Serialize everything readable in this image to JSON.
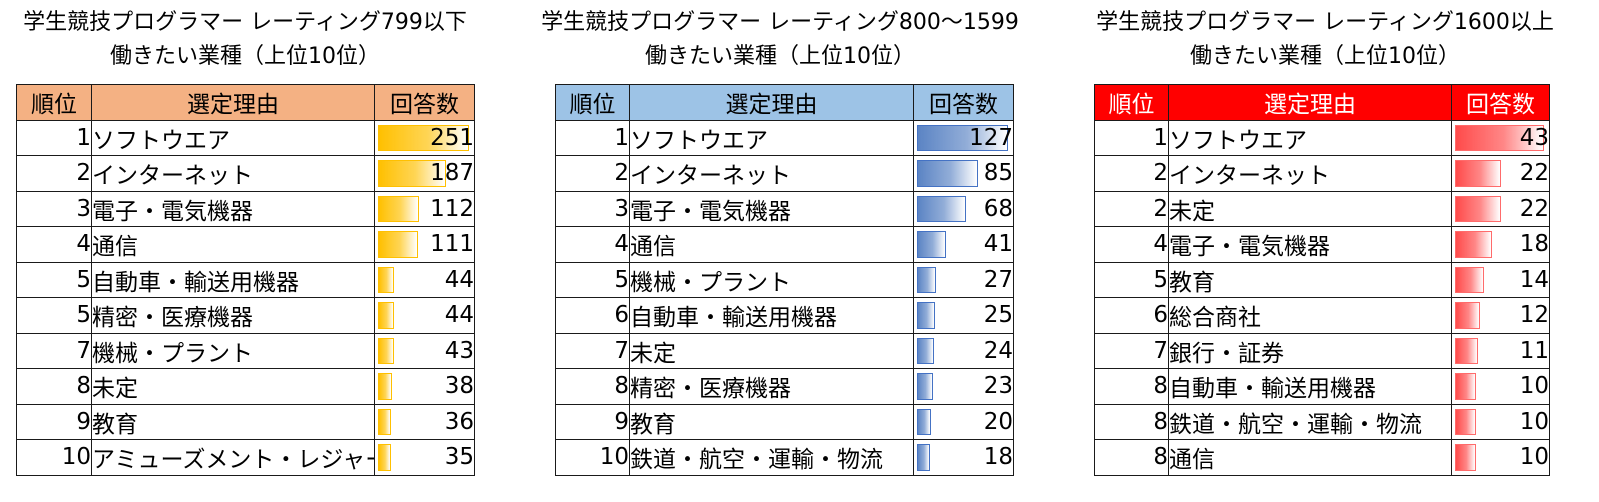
{
  "panels": [
    {
      "title_line1": "学生競技プログラマー レーティング799以下",
      "title_line2": "働きたい業種（上位10位）",
      "header": {
        "rank": "順位",
        "reason": "選定理由",
        "count": "回答数"
      },
      "header_bg": "#f4b183",
      "header_text_color": "#000000",
      "bar_color": "#ffc000",
      "bar_border": "#ffc000",
      "max_value": 251,
      "rows": [
        {
          "rank": "1",
          "reason": "ソフトウエア",
          "count": 251
        },
        {
          "rank": "2",
          "reason": "インターネット",
          "count": 187
        },
        {
          "rank": "3",
          "reason": "電子・電気機器",
          "count": 112
        },
        {
          "rank": "4",
          "reason": "通信",
          "count": 111
        },
        {
          "rank": "5",
          "reason": "自動車・輸送用機器",
          "count": 44
        },
        {
          "rank": "5",
          "reason": "精密・医療機器",
          "count": 44
        },
        {
          "rank": "7",
          "reason": "機械・プラント",
          "count": 43
        },
        {
          "rank": "8",
          "reason": "未定",
          "count": 38
        },
        {
          "rank": "9",
          "reason": "教育",
          "count": 36
        },
        {
          "rank": "10",
          "reason": "アミューズメント・レジャー",
          "count": 35
        }
      ]
    },
    {
      "title_line1": "学生競技プログラマー レーティング800～1599",
      "title_line2": "働きたい業種（上位10位）",
      "header": {
        "rank": "順位",
        "reason": "選定理由",
        "count": "回答数"
      },
      "header_bg": "#9dc3e6",
      "header_text_color": "#000000",
      "bar_color": "#5b84c4",
      "bar_border": "#4472c4",
      "max_value": 127,
      "rows": [
        {
          "rank": "1",
          "reason": "ソフトウエア",
          "count": 127
        },
        {
          "rank": "2",
          "reason": "インターネット",
          "count": 85
        },
        {
          "rank": "3",
          "reason": "電子・電気機器",
          "count": 68
        },
        {
          "rank": "4",
          "reason": "通信",
          "count": 41
        },
        {
          "rank": "5",
          "reason": "機械・プラント",
          "count": 27
        },
        {
          "rank": "6",
          "reason": "自動車・輸送用機器",
          "count": 25
        },
        {
          "rank": "7",
          "reason": "未定",
          "count": 24
        },
        {
          "rank": "8",
          "reason": "精密・医療機器",
          "count": 23
        },
        {
          "rank": "9",
          "reason": "教育",
          "count": 20
        },
        {
          "rank": "10",
          "reason": "鉄道・航空・運輸・物流",
          "count": 18
        }
      ]
    },
    {
      "title_line1": "学生競技プログラマー レーティング1600以上",
      "title_line2": "働きたい業種（上位10位）",
      "header": {
        "rank": "順位",
        "reason": "選定理由",
        "count": "回答数"
      },
      "header_bg": "#ff0000",
      "header_text_color": "#ffffff",
      "bar_color": "#ff4b4b",
      "bar_border": "#ff6b6b",
      "max_value": 43,
      "rows": [
        {
          "rank": "1",
          "reason": "ソフトウエア",
          "count": 43
        },
        {
          "rank": "2",
          "reason": "インターネット",
          "count": 22
        },
        {
          "rank": "2",
          "reason": "未定",
          "count": 22
        },
        {
          "rank": "4",
          "reason": "電子・電気機器",
          "count": 18
        },
        {
          "rank": "5",
          "reason": "教育",
          "count": 14
        },
        {
          "rank": "6",
          "reason": "総合商社",
          "count": 12
        },
        {
          "rank": "7",
          "reason": "銀行・証券",
          "count": 11
        },
        {
          "rank": "8",
          "reason": "自動車・輸送用機器",
          "count": 10
        },
        {
          "rank": "8",
          "reason": "鉄道・航空・運輸・物流",
          "count": 10
        },
        {
          "rank": "8",
          "reason": "通信",
          "count": 10
        }
      ]
    }
  ]
}
